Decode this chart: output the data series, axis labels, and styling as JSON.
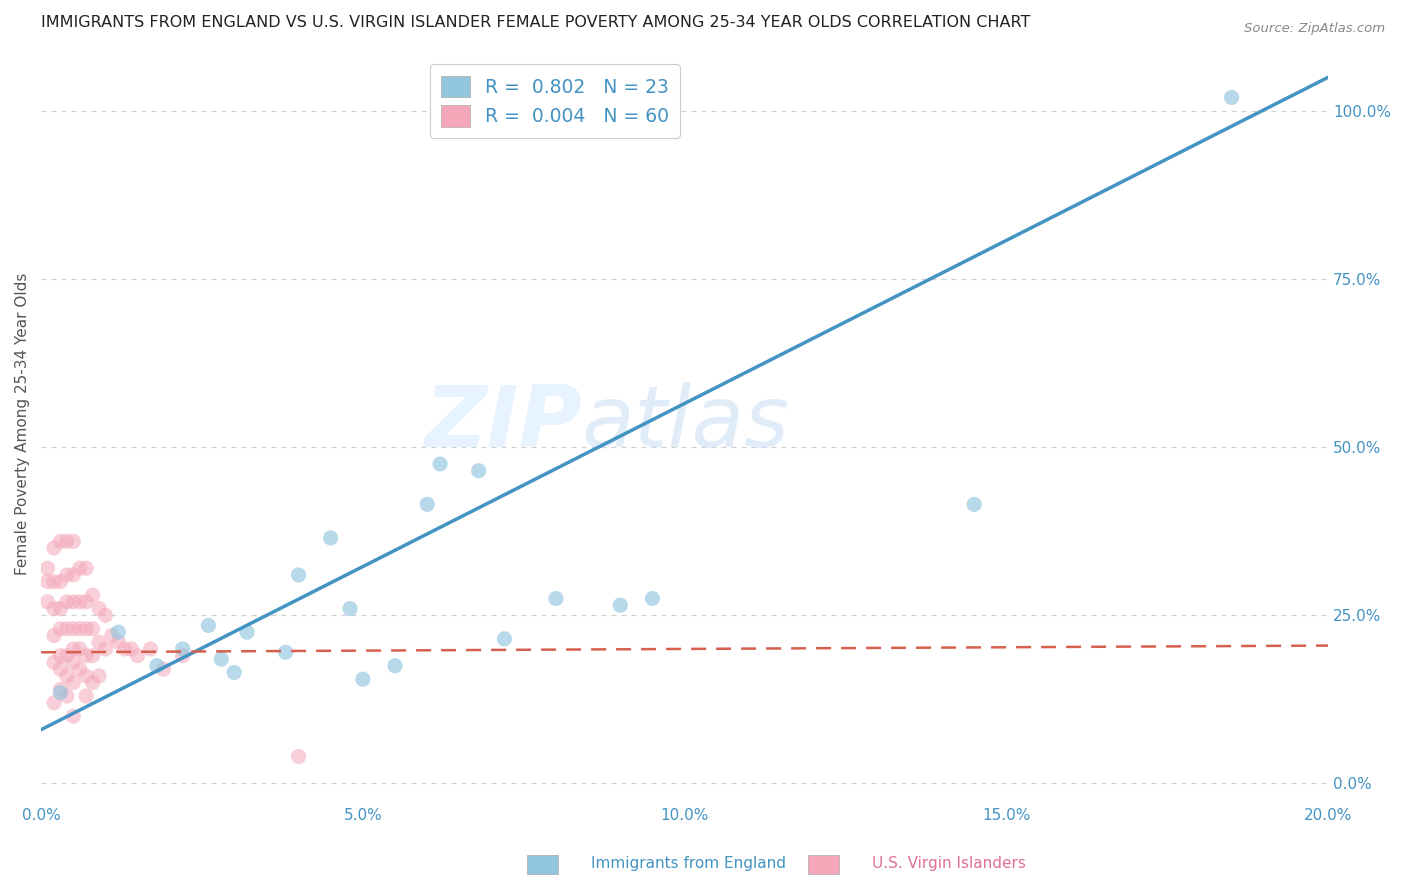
{
  "title": "IMMIGRANTS FROM ENGLAND VS U.S. VIRGIN ISLANDER FEMALE POVERTY AMONG 25-34 YEAR OLDS CORRELATION CHART",
  "source": "Source: ZipAtlas.com",
  "ylabel": "Female Poverty Among 25-34 Year Olds",
  "xlim": [
    0.0,
    0.2
  ],
  "ylim": [
    -0.03,
    1.1
  ],
  "xticks": [
    0.0,
    0.05,
    0.1,
    0.15,
    0.2
  ],
  "xtick_labels": [
    "0.0%",
    "5.0%",
    "10.0%",
    "15.0%",
    "20.0%"
  ],
  "yticks_right": [
    0.0,
    0.25,
    0.5,
    0.75,
    1.0
  ],
  "ytick_labels_right": [
    "0.0%",
    "25.0%",
    "50.0%",
    "75.0%",
    "100.0%"
  ],
  "watermark_zip": "ZIP",
  "watermark_atlas": "atlas",
  "legend_label1": "R =  0.802   N = 23",
  "legend_label2": "R =  0.004   N = 60",
  "blue_color": "#92c5de",
  "pink_color": "#f4a7b9",
  "line_blue": "#4393c3",
  "line_pink": "#d6604d",
  "blue_scatter_x": [
    0.003,
    0.012,
    0.018,
    0.022,
    0.026,
    0.028,
    0.03,
    0.032,
    0.038,
    0.04,
    0.045,
    0.048,
    0.05,
    0.055,
    0.06,
    0.062,
    0.068,
    0.072,
    0.08,
    0.09,
    0.095,
    0.145,
    0.185
  ],
  "blue_scatter_y": [
    0.135,
    0.225,
    0.175,
    0.2,
    0.235,
    0.185,
    0.165,
    0.225,
    0.195,
    0.31,
    0.365,
    0.26,
    0.155,
    0.175,
    0.415,
    0.475,
    0.465,
    0.215,
    0.275,
    0.265,
    0.275,
    0.415,
    1.02
  ],
  "pink_scatter_x": [
    0.001,
    0.001,
    0.001,
    0.002,
    0.002,
    0.002,
    0.002,
    0.002,
    0.002,
    0.003,
    0.003,
    0.003,
    0.003,
    0.003,
    0.003,
    0.003,
    0.004,
    0.004,
    0.004,
    0.004,
    0.004,
    0.004,
    0.004,
    0.005,
    0.005,
    0.005,
    0.005,
    0.005,
    0.005,
    0.005,
    0.005,
    0.006,
    0.006,
    0.006,
    0.006,
    0.006,
    0.007,
    0.007,
    0.007,
    0.007,
    0.007,
    0.007,
    0.008,
    0.008,
    0.008,
    0.008,
    0.009,
    0.009,
    0.009,
    0.01,
    0.01,
    0.011,
    0.012,
    0.013,
    0.014,
    0.015,
    0.017,
    0.019,
    0.022,
    0.04
  ],
  "pink_scatter_y": [
    0.3,
    0.32,
    0.27,
    0.35,
    0.3,
    0.26,
    0.22,
    0.18,
    0.12,
    0.36,
    0.3,
    0.26,
    0.23,
    0.19,
    0.17,
    0.14,
    0.36,
    0.31,
    0.27,
    0.23,
    0.19,
    0.16,
    0.13,
    0.36,
    0.31,
    0.27,
    0.23,
    0.2,
    0.18,
    0.15,
    0.1,
    0.32,
    0.27,
    0.23,
    0.2,
    0.17,
    0.32,
    0.27,
    0.23,
    0.19,
    0.16,
    0.13,
    0.28,
    0.23,
    0.19,
    0.15,
    0.26,
    0.21,
    0.16,
    0.25,
    0.2,
    0.22,
    0.21,
    0.2,
    0.2,
    0.19,
    0.2,
    0.17,
    0.19,
    0.04
  ],
  "blue_line_x": [
    0.0,
    0.2
  ],
  "blue_line_y": [
    0.08,
    1.05
  ],
  "pink_line_x": [
    0.0,
    0.2
  ],
  "pink_line_y": [
    0.195,
    0.205
  ],
  "background_color": "#ffffff",
  "grid_color": "#d0d0d0",
  "title_fontsize": 11.5,
  "axis_label_fontsize": 11,
  "tick_fontsize": 11,
  "scatter_size": 120,
  "accent_color": "#4393c3",
  "legend_text_color": "#4393c3"
}
